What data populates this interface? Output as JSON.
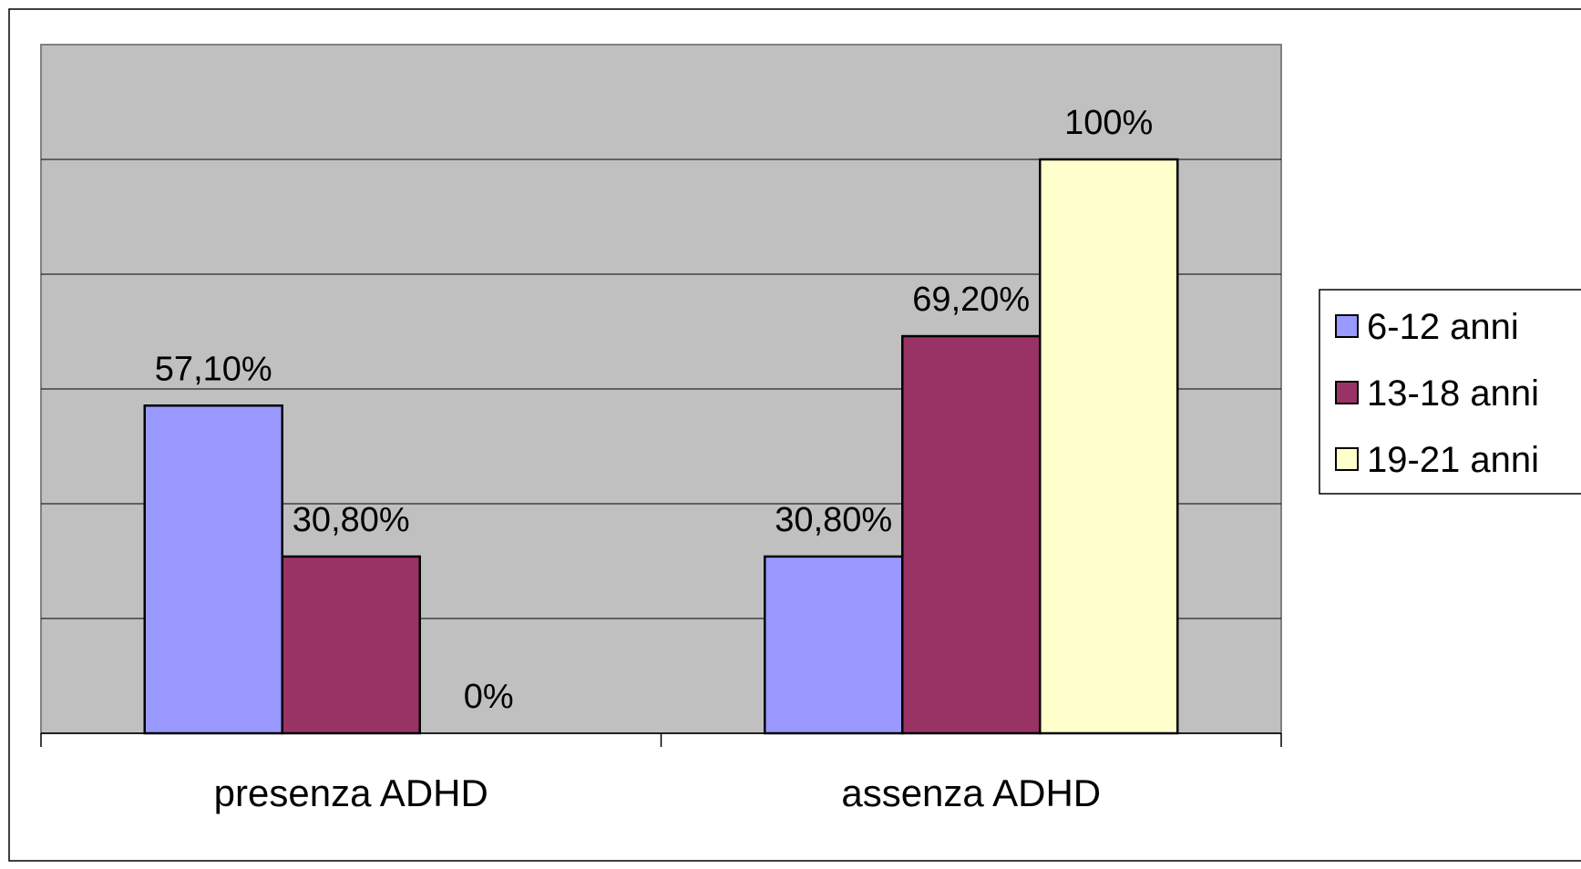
{
  "chart_data": {
    "type": "bar",
    "categories": [
      "presenza ADHD",
      "assenza ADHD"
    ],
    "series": [
      {
        "name": "6-12 anni",
        "values": [
          57.1,
          30.8
        ],
        "labels": [
          "57,10%",
          "30,80%"
        ],
        "color": "#9999FF"
      },
      {
        "name": "13-18 anni",
        "values": [
          30.8,
          69.2
        ],
        "labels": [
          "30,80%",
          "69,20%"
        ],
        "color": "#993366"
      },
      {
        "name": "19-21 anni",
        "values": [
          0,
          100
        ],
        "labels": [
          "0%",
          "100%"
        ],
        "color": "#FFFFCC"
      }
    ],
    "ylim": [
      0,
      120
    ],
    "grid": true,
    "legend": "right",
    "plot_background": "#C0C0C0"
  }
}
